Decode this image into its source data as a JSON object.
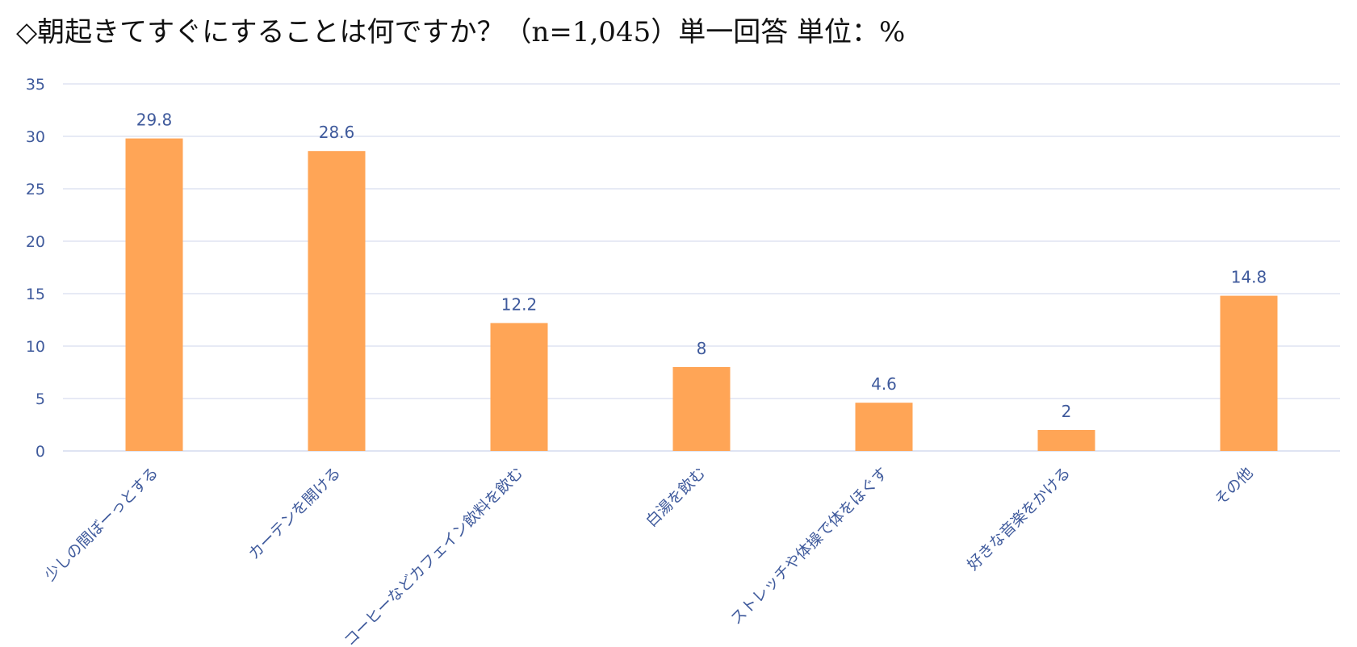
{
  "chart_data": {
    "type": "bar",
    "title": "◇朝起きてすぐにすることは何ですか？（n=1,045）単一回答 単位：%",
    "xlabel": "",
    "ylabel": "",
    "categories": [
      "少しの間ぼーっとする",
      "カーテンを開ける",
      "コーヒーなどカフェイン飲料を飲む",
      "白湯を飲む",
      "ストレッチや体操で体をほぐす",
      "好きな音楽をかける",
      "その他"
    ],
    "values": [
      29.8,
      28.6,
      12.2,
      8,
      4.6,
      2,
      14.8
    ],
    "data_labels": [
      "29.8",
      "28.6",
      "12.2",
      "8",
      "4.6",
      "2",
      "14.8"
    ],
    "ylim": [
      0,
      35
    ],
    "yticks": [
      0,
      5,
      10,
      15,
      20,
      25,
      30,
      35
    ],
    "grid": true,
    "legend": "none",
    "bar_color": "#ffa556",
    "label_color": "#3f5a9c",
    "grid_color": "#dfe4f2"
  }
}
